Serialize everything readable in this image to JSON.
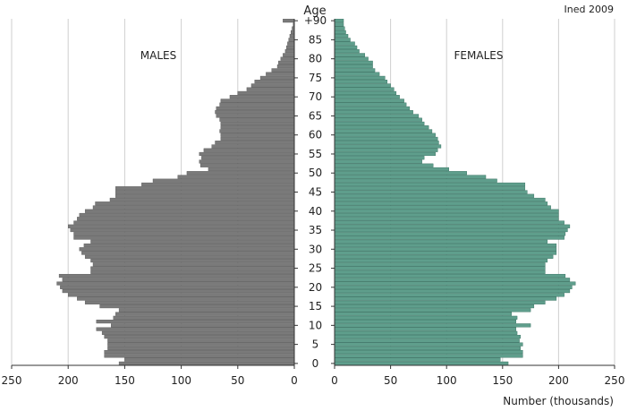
{
  "chart_data": {
    "type": "bar",
    "title": "",
    "source": "Ined 2009",
    "age_axis_label": "Age",
    "xlabel": "Number (thousands)",
    "left_panel_label": "MALES",
    "right_panel_label": "FEMALES",
    "xlim": [
      0,
      250
    ],
    "x_ticks": [
      250,
      200,
      150,
      100,
      50,
      0
    ],
    "age_ticks": [
      "0",
      "5",
      "10",
      "15",
      "20",
      "25",
      "30",
      "35",
      "40",
      "45",
      "50",
      "55",
      "60",
      "65",
      "70",
      "75",
      "80",
      "85",
      "+90"
    ],
    "ages": [
      0,
      1,
      2,
      3,
      4,
      5,
      6,
      7,
      8,
      9,
      10,
      11,
      12,
      13,
      14,
      15,
      16,
      17,
      18,
      19,
      20,
      21,
      22,
      23,
      24,
      25,
      26,
      27,
      28,
      29,
      30,
      31,
      32,
      33,
      34,
      35,
      36,
      37,
      38,
      39,
      40,
      41,
      42,
      43,
      44,
      45,
      46,
      47,
      48,
      49,
      50,
      51,
      52,
      53,
      54,
      55,
      56,
      57,
      58,
      59,
      60,
      61,
      62,
      63,
      64,
      65,
      66,
      67,
      68,
      69,
      70,
      71,
      72,
      73,
      74,
      75,
      76,
      77,
      78,
      79,
      80,
      81,
      82,
      83,
      84,
      85,
      86,
      87,
      88,
      89,
      90
    ],
    "series": [
      {
        "name": "MALES",
        "color": "#7a7a7a",
        "values": [
          155,
          150,
          168,
          168,
          165,
          165,
          165,
          168,
          170,
          175,
          162,
          175,
          160,
          158,
          155,
          172,
          185,
          192,
          200,
          205,
          207,
          210,
          205,
          208,
          180,
          180,
          178,
          180,
          185,
          188,
          190,
          186,
          180,
          195,
          195,
          198,
          200,
          195,
          192,
          190,
          185,
          178,
          176,
          163,
          158,
          158,
          158,
          135,
          125,
          103,
          95,
          76,
          83,
          84,
          82,
          84,
          80,
          73,
          70,
          65,
          65,
          66,
          65,
          65,
          66,
          69,
          70,
          69,
          66,
          65,
          57,
          50,
          42,
          38,
          35,
          30,
          25,
          20,
          15,
          14,
          12,
          10,
          8,
          7,
          6,
          5,
          4,
          3,
          2,
          1,
          10
        ]
      },
      {
        "name": "FEMALES",
        "color": "#5f9e8c",
        "values": [
          155,
          148,
          168,
          168,
          166,
          168,
          165,
          166,
          163,
          162,
          175,
          162,
          163,
          158,
          175,
          178,
          188,
          198,
          205,
          210,
          212,
          215,
          210,
          206,
          188,
          188,
          188,
          190,
          195,
          198,
          198,
          198,
          190,
          205,
          206,
          208,
          210,
          205,
          200,
          200,
          200,
          193,
          190,
          188,
          178,
          172,
          170,
          170,
          145,
          135,
          118,
          102,
          88,
          78,
          80,
          90,
          92,
          95,
          93,
          92,
          90,
          87,
          84,
          80,
          78,
          75,
          70,
          67,
          64,
          62,
          58,
          55,
          53,
          50,
          47,
          45,
          40,
          36,
          34,
          34,
          30,
          27,
          22,
          20,
          18,
          14,
          12,
          10,
          9,
          8,
          8
        ]
      }
    ]
  }
}
